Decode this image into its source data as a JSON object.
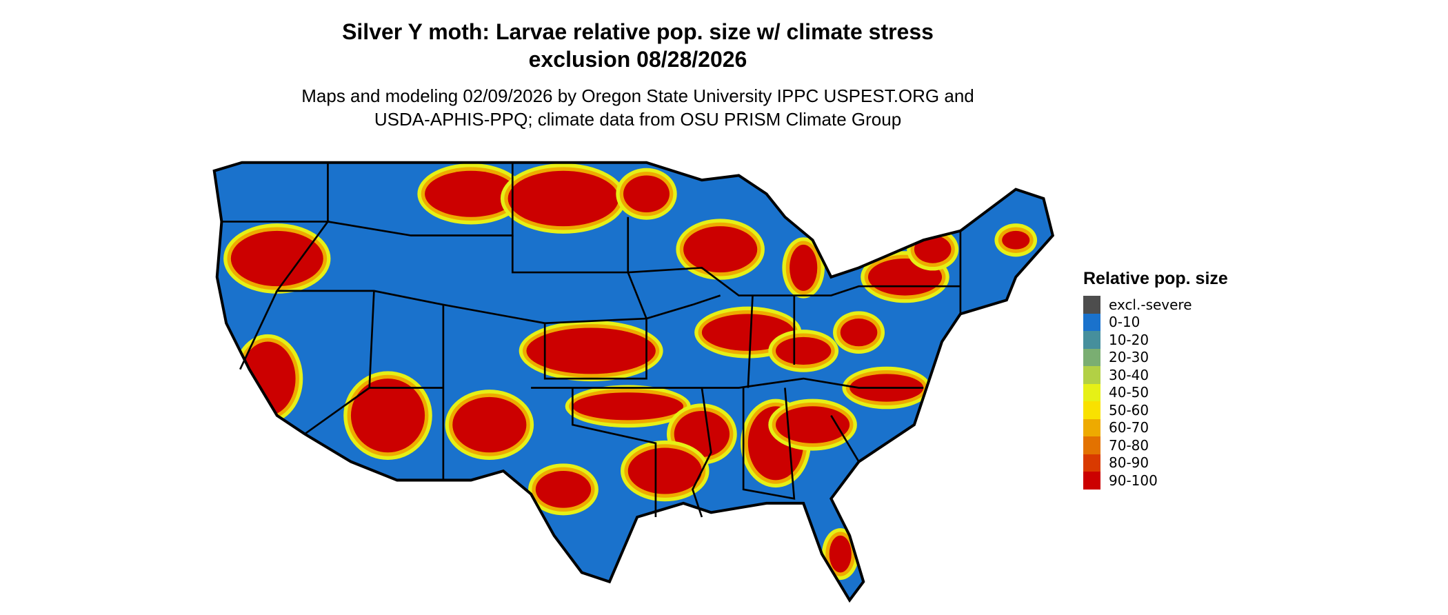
{
  "title_line1": "Silver Y moth: Larvae relative pop. size w/ climate stress",
  "title_line2": "exclusion 08/28/2026",
  "subtitle_line1": "Maps and modeling 02/09/2026 by Oregon State University IPPC USPEST.ORG and",
  "subtitle_line2": "USDA-APHIS-PPQ; climate data from OSU PRISM Climate Group",
  "legend": {
    "title": "Relative pop. size",
    "items": [
      {
        "label": "excl.-severe",
        "color": "#4d4d4d"
      },
      {
        "label": "0-10",
        "color": "#1a72cc"
      },
      {
        "label": "10-20",
        "color": "#468f9c"
      },
      {
        "label": "20-30",
        "color": "#7aae72"
      },
      {
        "label": "30-40",
        "color": "#b2d045"
      },
      {
        "label": "40-50",
        "color": "#e6f016"
      },
      {
        "label": "50-60",
        "color": "#f9e100"
      },
      {
        "label": "60-70",
        "color": "#eeaa00"
      },
      {
        "label": "70-80",
        "color": "#e37200"
      },
      {
        "label": "80-90",
        "color": "#d93a00"
      },
      {
        "label": "90-100",
        "color": "#cc0000"
      }
    ]
  }
}
